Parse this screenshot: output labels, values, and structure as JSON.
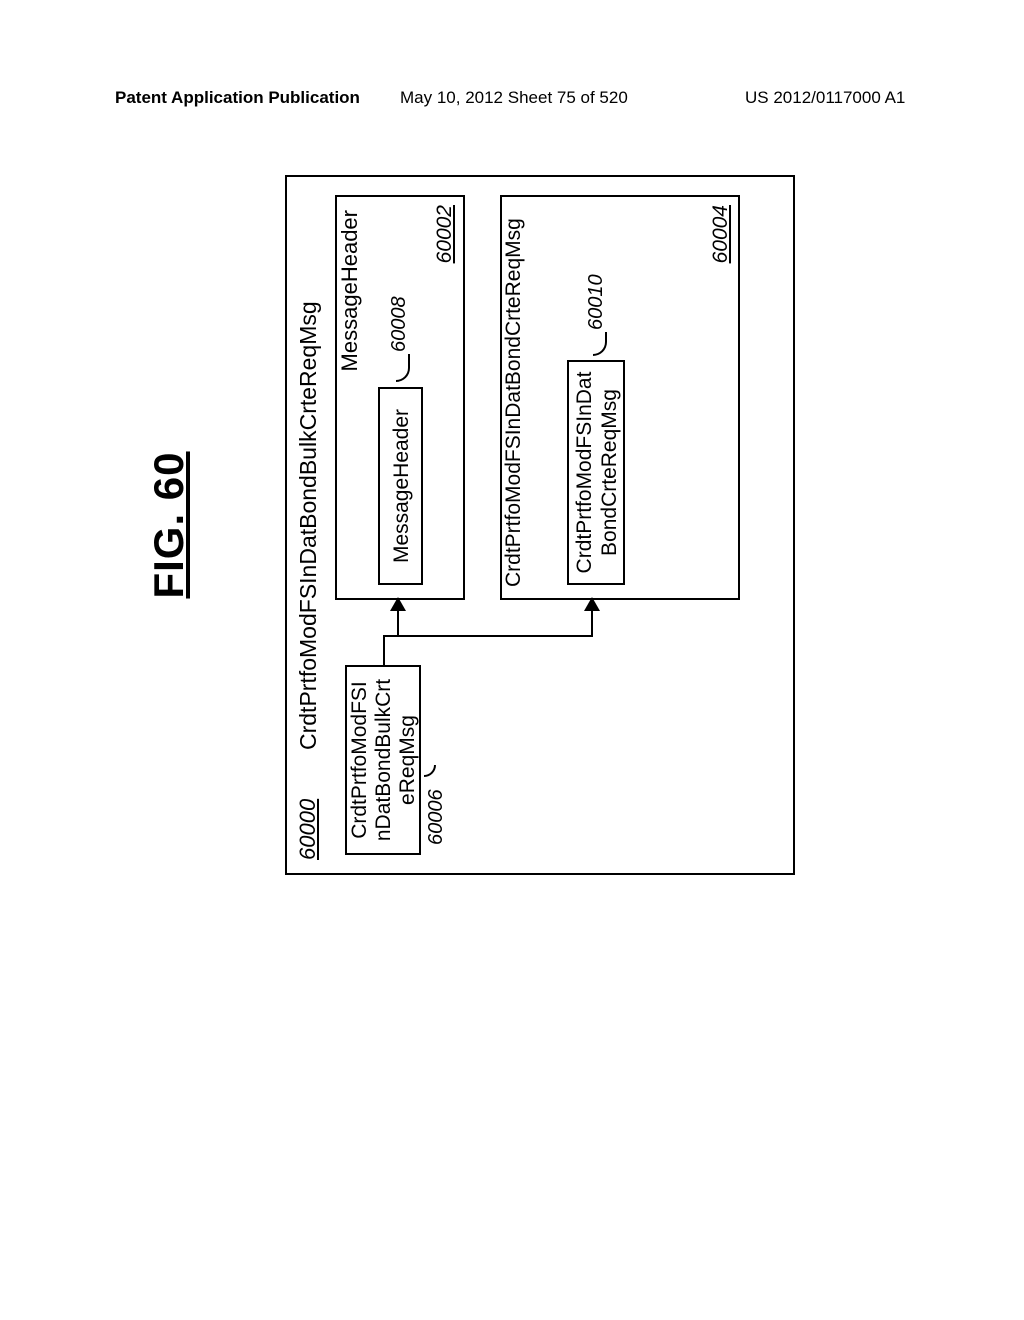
{
  "header": {
    "left": "Patent Application Publication",
    "center": "May 10, 2012  Sheet 75 of 520",
    "right": "US 2012/0117000 A1"
  },
  "figure": {
    "title": "FIG. 60",
    "outer_ref": "60000",
    "outer_title": "CrdtPrtfoModFSInDatBondBulkCrteReqMsg",
    "box_60006": {
      "line1": "CrdtPrtfoModFSI",
      "line2": "nDatBondBulkCrt",
      "line3": "eReqMsg",
      "ref": "60006"
    },
    "box_60002": {
      "title": "MessageHeader",
      "ref": "60002"
    },
    "box_60008": {
      "label": "MessageHeader",
      "ref": "60008"
    },
    "box_60004": {
      "title": "CrdtPrtfoModFSInDatBondCrteReqMsg",
      "ref": "60004"
    },
    "box_60010": {
      "line1": "CrdtPrtfoModFSInDat",
      "line2": "BondCrteReqMsg",
      "ref": "60010"
    }
  }
}
